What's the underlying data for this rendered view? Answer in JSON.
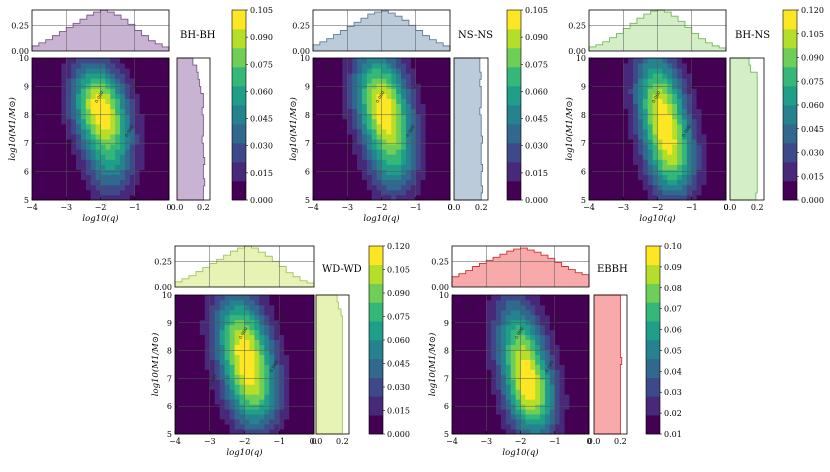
{
  "colors": {
    "viridis": [
      "#440154",
      "#482878",
      "#3e4989",
      "#31688e",
      "#26828e",
      "#1f9e89",
      "#35b779",
      "#6ece58",
      "#b5de2b",
      "#fde725"
    ],
    "grid": "#555555",
    "contour_label": "#222222"
  },
  "chart_data": [
    {
      "type": "heatmap",
      "id": "bhbh",
      "title": "BH-BH",
      "hist_color": "#c9b3d3",
      "hist_edge": "#7a5a8c",
      "xlabel": "log10(q)",
      "ylabel": "log10(M1/M⊙)",
      "xlim": [
        -4,
        0
      ],
      "ylim": [
        5,
        10
      ],
      "x_ticks": [
        "−4",
        "−3",
        "−2",
        "−1",
        "0"
      ],
      "y_ticks": [
        "5",
        "6",
        "7",
        "8",
        "9",
        "10"
      ],
      "peak": {
        "x": -2.0,
        "y": 8.2,
        "sx": 0.55,
        "sy": 1.1
      },
      "contour_labels": [
        "0.090",
        "0.060",
        "0.030",
        "0.060",
        "0.090"
      ],
      "top_hist": {
        "ylim": [
          0,
          0.4
        ],
        "y_ticks": [
          "0.00",
          "0.25"
        ],
        "values": [
          0.05,
          0.08,
          0.11,
          0.15,
          0.19,
          0.23,
          0.27,
          0.31,
          0.35,
          0.38,
          0.4,
          0.38,
          0.35,
          0.31,
          0.26,
          0.2,
          0.15,
          0.1,
          0.07,
          0.04
        ]
      },
      "side_hist": {
        "xlim": [
          0,
          0.25
        ],
        "x_ticks": [
          "0.0",
          "0.2"
        ],
        "values": [
          0.2,
          0.2,
          0.21,
          0.2,
          0.2,
          0.21,
          0.2,
          0.2,
          0.19,
          0.2,
          0.2,
          0.2,
          0.19,
          0.2,
          0.2,
          0.18,
          0.17,
          0.16,
          0.15,
          0.12
        ]
      },
      "colorbar": {
        "ticks": [
          "0.000",
          "0.015",
          "0.030",
          "0.045",
          "0.060",
          "0.075",
          "0.090",
          "0.105"
        ]
      }
    },
    {
      "type": "heatmap",
      "id": "nsns",
      "title": "NS-NS",
      "hist_color": "#bccbd9",
      "hist_edge": "#5f7d9a",
      "xlabel": "log10(q)",
      "ylabel": "log10(M1/M⊙)",
      "xlim": [
        -4,
        0
      ],
      "ylim": [
        5,
        10
      ],
      "x_ticks": [
        "−4",
        "−3",
        "−2",
        "−1",
        "0"
      ],
      "y_ticks": [
        "5",
        "6",
        "7",
        "8",
        "9",
        "10"
      ],
      "peak": {
        "x": -1.95,
        "y": 8.3,
        "sx": 0.55,
        "sy": 1.3
      },
      "contour_labels": [
        "0.090",
        "0.060",
        "0.030",
        "0.060",
        "0.090"
      ],
      "top_hist": {
        "ylim": [
          0,
          0.4
        ],
        "y_ticks": [
          "0.00",
          "0.25"
        ],
        "values": [
          0.06,
          0.09,
          0.12,
          0.16,
          0.2,
          0.24,
          0.28,
          0.32,
          0.36,
          0.38,
          0.39,
          0.37,
          0.34,
          0.3,
          0.25,
          0.2,
          0.15,
          0.11,
          0.08,
          0.05
        ]
      },
      "side_hist": {
        "xlim": [
          0,
          0.25
        ],
        "x_ticks": [
          "0.0",
          "0.2"
        ],
        "values": [
          0.2,
          0.21,
          0.2,
          0.2,
          0.21,
          0.2,
          0.2,
          0.2,
          0.21,
          0.2,
          0.2,
          0.2,
          0.19,
          0.2,
          0.2,
          0.2,
          0.19,
          0.2,
          0.19,
          0.19
        ]
      },
      "colorbar": {
        "ticks": [
          "0.000",
          "0.015",
          "0.030",
          "0.045",
          "0.060",
          "0.075",
          "0.090",
          "0.105"
        ]
      }
    },
    {
      "type": "heatmap",
      "id": "bhns",
      "title": "BH-NS",
      "hist_color": "#d4efc8",
      "hist_edge": "#6fba58",
      "xlabel": "log10(q)",
      "ylabel": "log10(M1/M⊙)",
      "xlim": [
        -4,
        0
      ],
      "ylim": [
        5,
        10
      ],
      "x_ticks": [
        "−4",
        "−3",
        "−2",
        "−1",
        "0"
      ],
      "y_ticks": [
        "5",
        "6",
        "7",
        "8",
        "9",
        "10"
      ],
      "peak": {
        "x": -1.85,
        "y": 8.0,
        "sx": 0.5,
        "sy": 1.5
      },
      "contour_labels": [
        "0.100",
        "0.060",
        "0.030",
        "0.060",
        "0.100"
      ],
      "top_hist": {
        "ylim": [
          0,
          0.4
        ],
        "y_ticks": [
          "0.00",
          "0.25"
        ],
        "values": [
          0.04,
          0.06,
          0.09,
          0.13,
          0.17,
          0.22,
          0.27,
          0.32,
          0.36,
          0.39,
          0.4,
          0.38,
          0.34,
          0.29,
          0.23,
          0.17,
          0.12,
          0.08,
          0.05,
          0.03
        ]
      },
      "side_hist": {
        "xlim": [
          0,
          0.25
        ],
        "x_ticks": [
          "0.0",
          "0.2"
        ],
        "values": [
          0.19,
          0.2,
          0.2,
          0.2,
          0.2,
          0.2,
          0.2,
          0.2,
          0.2,
          0.2,
          0.2,
          0.2,
          0.2,
          0.2,
          0.2,
          0.2,
          0.2,
          0.2,
          0.15,
          0.14
        ]
      },
      "colorbar": {
        "ticks": [
          "0.000",
          "0.015",
          "0.030",
          "0.045",
          "0.060",
          "0.075",
          "0.090",
          "0.105",
          "0.120"
        ]
      }
    },
    {
      "type": "heatmap",
      "id": "wdwd",
      "title": "WD-WD",
      "hist_color": "#e6f3b4",
      "hist_edge": "#a2c45c",
      "xlabel": "log10(q)",
      "ylabel": "log10(M1/M⊙)",
      "xlim": [
        -4,
        0
      ],
      "ylim": [
        5,
        10
      ],
      "x_ticks": [
        "−4",
        "−3",
        "−2",
        "−1",
        "0"
      ],
      "y_ticks": [
        "5",
        "6",
        "7",
        "8",
        "9",
        "10"
      ],
      "peak": {
        "x": -2.0,
        "y": 8.0,
        "sx": 0.55,
        "sy": 1.4
      },
      "contour_labels": [
        "0.090",
        "0.060",
        "0.030",
        "0.060",
        "0.090"
      ],
      "top_hist": {
        "ylim": [
          0,
          0.4
        ],
        "y_ticks": [
          "0.00",
          "0.25"
        ],
        "values": [
          0.05,
          0.08,
          0.11,
          0.15,
          0.19,
          0.23,
          0.27,
          0.31,
          0.35,
          0.38,
          0.4,
          0.38,
          0.34,
          0.3,
          0.25,
          0.2,
          0.14,
          0.1,
          0.06,
          0.04
        ]
      },
      "side_hist": {
        "xlim": [
          0,
          0.25
        ],
        "x_ticks": [
          "0.0",
          "0.2"
        ],
        "values": [
          0.2,
          0.2,
          0.2,
          0.2,
          0.2,
          0.2,
          0.2,
          0.2,
          0.2,
          0.2,
          0.2,
          0.2,
          0.2,
          0.2,
          0.2,
          0.2,
          0.2,
          0.19,
          0.17,
          0.16
        ]
      },
      "colorbar": {
        "ticks": [
          "0.000",
          "0.015",
          "0.030",
          "0.045",
          "0.060",
          "0.075",
          "0.090",
          "0.105",
          "0.120"
        ]
      }
    },
    {
      "type": "heatmap",
      "id": "ebbh",
      "title": "EBBH",
      "hist_color": "#f8aaaa",
      "hist_edge": "#cc3333",
      "xlabel": "log10(q)",
      "ylabel": "log10(M1/M⊙)",
      "xlim": [
        -4,
        0
      ],
      "ylim": [
        5,
        10
      ],
      "x_ticks": [
        "−4",
        "−3",
        "−2",
        "−1",
        "0"
      ],
      "y_ticks": [
        "5",
        "6",
        "7",
        "8",
        "9",
        "10"
      ],
      "peak": {
        "x": -1.9,
        "y": 7.5,
        "sx": 0.5,
        "sy": 1.6
      },
      "contour_labels": [
        "0.080",
        "0.060",
        "0.030",
        "0.060",
        "0.080"
      ],
      "top_hist": {
        "ylim": [
          0,
          0.4
        ],
        "y_ticks": [
          "0.00",
          "0.25"
        ],
        "values": [
          0.1,
          0.13,
          0.16,
          0.2,
          0.23,
          0.26,
          0.29,
          0.32,
          0.35,
          0.37,
          0.38,
          0.36,
          0.34,
          0.31,
          0.28,
          0.24,
          0.2,
          0.17,
          0.14,
          0.12
        ]
      },
      "side_hist": {
        "xlim": [
          0,
          0.25
        ],
        "x_ticks": [
          "0.0",
          "0.2"
        ],
        "values": [
          0.2,
          0.2,
          0.2,
          0.2,
          0.2,
          0.2,
          0.2,
          0.2,
          0.2,
          0.2,
          0.21,
          0.2,
          0.2,
          0.2,
          0.2,
          0.2,
          0.2,
          0.2,
          0.2,
          0.2
        ]
      },
      "colorbar": {
        "ticks": [
          "0.01",
          "0.02",
          "0.03",
          "0.04",
          "0.05",
          "0.06",
          "0.07",
          "0.08",
          "0.09",
          "0.10"
        ]
      }
    }
  ]
}
